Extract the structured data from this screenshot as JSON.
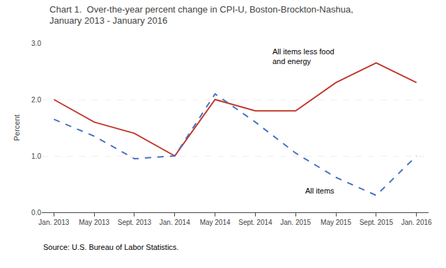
{
  "chart_data": {
    "type": "line",
    "title": "Chart 1.  Over-the-year percent change in CPI-U, Boston-Brockton-Nashua,\nJanuary 2013 - January 2016",
    "ylabel": "Percent",
    "source": "Source: U.S. Bureau of Labor Statistics.",
    "categories": [
      "Jan. 2013",
      "May 2013",
      "Sept. 2013",
      "Jan. 2014",
      "May 2014",
      "Sept. 2014",
      "Jan. 2015",
      "May 2015",
      "Sept. 2015",
      "Jan. 2016"
    ],
    "series": [
      {
        "name": "All items less food and energy",
        "color": "#c0392b",
        "line_style": "solid",
        "values": [
          2.0,
          1.6,
          1.4,
          1.0,
          2.0,
          1.8,
          1.8,
          2.3,
          2.65,
          2.3
        ]
      },
      {
        "name": "All items",
        "color": "#4472c4",
        "line_style": "dashed",
        "values": [
          1.65,
          1.35,
          0.95,
          1.0,
          2.1,
          1.6,
          1.05,
          0.62,
          0.3,
          1.0
        ]
      }
    ],
    "annotations": [
      {
        "text": "All items less food\nand energy",
        "x": "May 2015",
        "y": 2.58
      },
      {
        "text": "All items",
        "x": "May 2015",
        "y": 0.48
      }
    ],
    "ylim": [
      0.0,
      3.0
    ],
    "yticks": [
      {
        "value": 0.0,
        "label": "0.0"
      },
      {
        "value": 1.0,
        "label": "1.0"
      },
      {
        "value": 2.0,
        "label": "2.0"
      },
      {
        "value": 3.0,
        "label": "3.0"
      }
    ],
    "grid": true,
    "legend": false
  }
}
